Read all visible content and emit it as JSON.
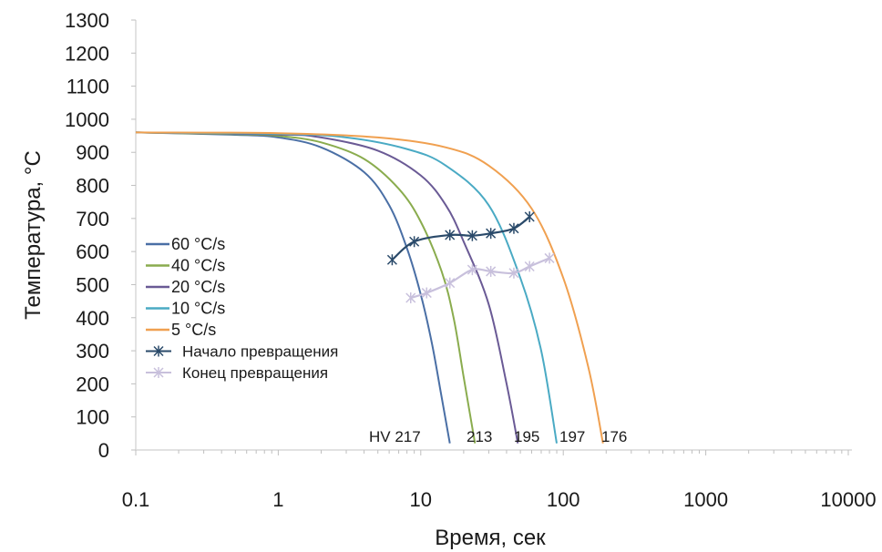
{
  "chart_data": {
    "type": "line",
    "title": "",
    "xlabel": "Время, сек",
    "ylabel": "Температура, °C",
    "x_scale": "log",
    "xlim": [
      0.1,
      10000
    ],
    "ylim": [
      0,
      1300
    ],
    "x_ticks": [
      "0.1",
      "1",
      "10",
      "100",
      "1000",
      "10000"
    ],
    "y_ticks": [
      "0",
      "100",
      "200",
      "300",
      "400",
      "500",
      "600",
      "700",
      "800",
      "900",
      "1000",
      "1100",
      "1200",
      "1300"
    ],
    "grid": false,
    "legend_position": "left-center",
    "series": [
      {
        "name": "60 °C/s",
        "color": "#4a6fa5",
        "kind": "cooling",
        "points": [
          [
            0.1,
            960
          ],
          [
            0.5,
            953
          ],
          [
            1,
            945
          ],
          [
            2,
            915
          ],
          [
            4,
            840
          ],
          [
            6,
            740
          ],
          [
            8,
            610
          ],
          [
            10,
            470
          ],
          [
            12,
            320
          ],
          [
            14,
            160
          ],
          [
            16,
            20
          ]
        ]
      },
      {
        "name": "40 °C/s",
        "color": "#8aac4e",
        "kind": "cooling",
        "points": [
          [
            0.1,
            960
          ],
          [
            0.5,
            955
          ],
          [
            1,
            950
          ],
          [
            2,
            930
          ],
          [
            4,
            880
          ],
          [
            7,
            790
          ],
          [
            10,
            690
          ],
          [
            14,
            540
          ],
          [
            17,
            400
          ],
          [
            20,
            220
          ],
          [
            24,
            20
          ]
        ]
      },
      {
        "name": "20 °C/s",
        "color": "#6a5a95",
        "kind": "cooling",
        "points": [
          [
            0.1,
            960
          ],
          [
            1,
            954
          ],
          [
            2,
            945
          ],
          [
            5,
            905
          ],
          [
            10,
            830
          ],
          [
            15,
            740
          ],
          [
            20,
            630
          ],
          [
            30,
            440
          ],
          [
            40,
            200
          ],
          [
            48,
            20
          ]
        ]
      },
      {
        "name": "10 °C/s",
        "color": "#4aaac4",
        "kind": "cooling",
        "points": [
          [
            0.1,
            960
          ],
          [
            1,
            956
          ],
          [
            3,
            945
          ],
          [
            8,
            910
          ],
          [
            15,
            860
          ],
          [
            30,
            740
          ],
          [
            50,
            520
          ],
          [
            70,
            300
          ],
          [
            90,
            20
          ]
        ]
      },
      {
        "name": "5 °C/s",
        "color": "#f0a050",
        "kind": "cooling",
        "points": [
          [
            0.1,
            960
          ],
          [
            1,
            958
          ],
          [
            5,
            945
          ],
          [
            15,
            915
          ],
          [
            30,
            860
          ],
          [
            60,
            730
          ],
          [
            100,
            520
          ],
          [
            150,
            250
          ],
          [
            190,
            20
          ]
        ]
      },
      {
        "name": "Начало превращения",
        "color": "#2a4a6a",
        "kind": "transformation",
        "points": [
          [
            6.3,
            575
          ],
          [
            9,
            630
          ],
          [
            16,
            650
          ],
          [
            23,
            648
          ],
          [
            31,
            655
          ],
          [
            45,
            670
          ],
          [
            58,
            705
          ]
        ]
      },
      {
        "name": "Конец превращения",
        "color": "#c8c0dc",
        "kind": "transformation",
        "points": [
          [
            8.5,
            460
          ],
          [
            11,
            475
          ],
          [
            16,
            505
          ],
          [
            23,
            545
          ],
          [
            31,
            540
          ],
          [
            45,
            535
          ],
          [
            58,
            555
          ],
          [
            80,
            580
          ]
        ]
      }
    ],
    "annotations": [
      "HV 217",
      "213",
      "195",
      "197",
      "176"
    ]
  }
}
